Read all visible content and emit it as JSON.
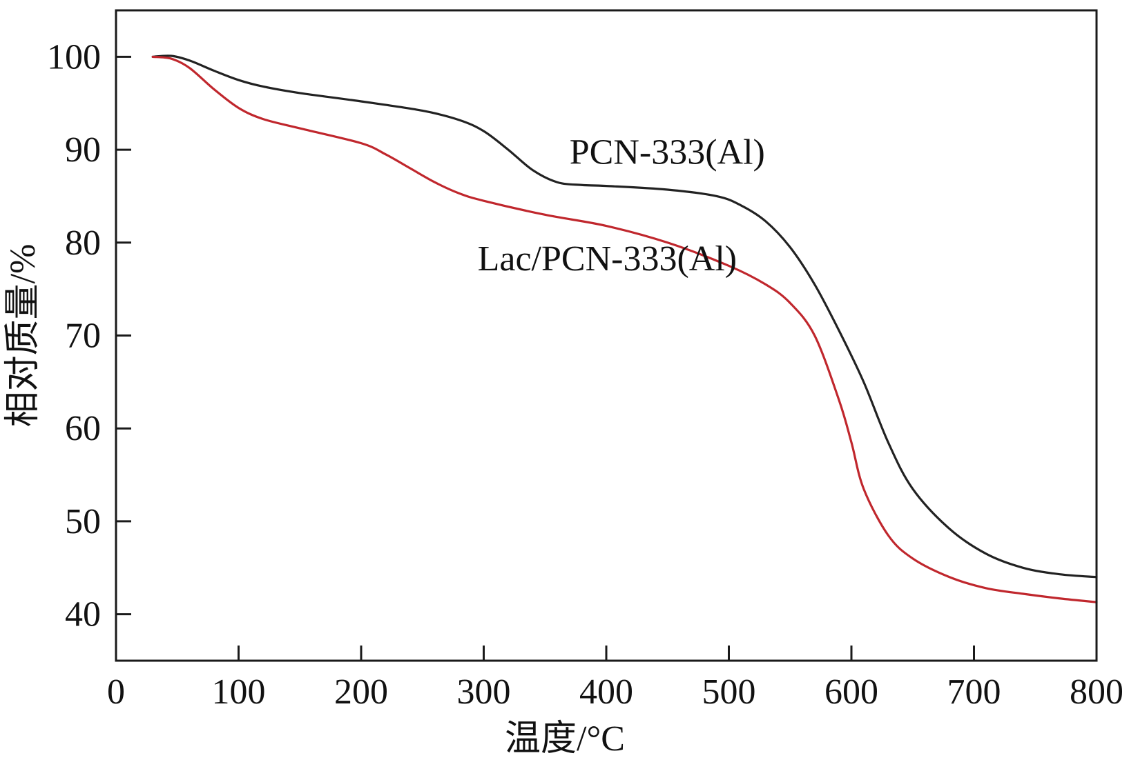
{
  "chart_data": {
    "type": "line",
    "title": "",
    "xlabel": "温度/°C",
    "ylabel": "相对质量/%",
    "xlim": [
      0,
      800
    ],
    "ylim": [
      35,
      105
    ],
    "xticks": [
      0,
      100,
      200,
      300,
      400,
      500,
      600,
      700,
      800
    ],
    "yticks": [
      40,
      50,
      60,
      70,
      80,
      90,
      100
    ],
    "grid": false,
    "series": [
      {
        "name": "PCN-333(Al)",
        "color": "#222222",
        "x": [
          30,
          45,
          60,
          80,
          100,
          120,
          150,
          200,
          250,
          280,
          300,
          320,
          340,
          360,
          380,
          400,
          450,
          490,
          510,
          530,
          550,
          570,
          590,
          610,
          630,
          650,
          680,
          710,
          740,
          770,
          800
        ],
        "y": [
          100,
          100.1,
          99.6,
          98.5,
          97.5,
          96.8,
          96.1,
          95.2,
          94.2,
          93.2,
          92.0,
          90.0,
          87.8,
          86.5,
          86.2,
          86.1,
          85.7,
          85.0,
          84.0,
          82.3,
          79.5,
          75.5,
          70.5,
          65.0,
          58.5,
          53.5,
          49.2,
          46.5,
          45.0,
          44.3,
          44.0
        ]
      },
      {
        "name": "Lac/PCN-333(Al)",
        "color": "#c0272d",
        "x": [
          30,
          45,
          60,
          80,
          100,
          120,
          150,
          200,
          220,
          240,
          260,
          280,
          300,
          350,
          400,
          450,
          500,
          530,
          550,
          570,
          590,
          600,
          610,
          630,
          650,
          680,
          710,
          740,
          770,
          800
        ],
        "y": [
          100,
          99.8,
          98.8,
          96.5,
          94.5,
          93.3,
          92.3,
          90.7,
          89.5,
          88.0,
          86.5,
          85.3,
          84.5,
          83.0,
          81.8,
          80.0,
          77.5,
          75.5,
          73.5,
          70.0,
          63.0,
          58.5,
          53.5,
          48.5,
          46.0,
          44.0,
          42.8,
          42.2,
          41.7,
          41.3
        ]
      }
    ],
    "annotations": [
      {
        "text": "PCN-333(Al)",
        "series": 0,
        "x": 370,
        "y": 88.5
      },
      {
        "text": "Lac/PCN-333(Al)",
        "series": 1,
        "x": 295,
        "y": 77.0
      }
    ]
  }
}
